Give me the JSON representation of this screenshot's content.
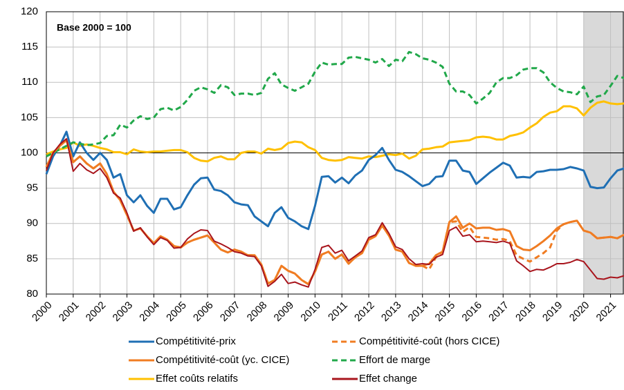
{
  "chart_data": {
    "type": "line",
    "annotation": "Base 2000 = 100",
    "x": [
      2000,
      2000.25,
      2000.5,
      2000.75,
      2001,
      2001.25,
      2001.5,
      2001.75,
      2002,
      2002.25,
      2002.5,
      2002.75,
      2003,
      2003.25,
      2003.5,
      2003.75,
      2004,
      2004.25,
      2004.5,
      2004.75,
      2005,
      2005.25,
      2005.5,
      2005.75,
      2006,
      2006.25,
      2006.5,
      2006.75,
      2007,
      2007.25,
      2007.5,
      2007.75,
      2008,
      2008.25,
      2008.5,
      2008.75,
      2009,
      2009.25,
      2009.5,
      2009.75,
      2010,
      2010.25,
      2010.5,
      2010.75,
      2011,
      2011.25,
      2011.5,
      2011.75,
      2012,
      2012.25,
      2012.5,
      2012.75,
      2013,
      2013.25,
      2013.5,
      2013.75,
      2014,
      2014.25,
      2014.5,
      2014.75,
      2015,
      2015.25,
      2015.5,
      2015.75,
      2016,
      2016.25,
      2016.5,
      2016.75,
      2017,
      2017.25,
      2017.5,
      2017.75,
      2018,
      2018.25,
      2018.5,
      2018.75,
      2019,
      2019.25,
      2019.5,
      2019.75,
      2020,
      2020.25,
      2020.5,
      2020.75,
      2021,
      2021.25,
      2021.5
    ],
    "series": [
      {
        "name": "Compétitivité-prix",
        "color": "#1f6fb4",
        "line_style": "solid",
        "values": [
          97,
          99.5,
          101,
          103,
          99.5,
          101.5,
          100,
          99,
          100,
          99,
          96.5,
          97,
          94,
          93,
          94,
          92.5,
          91.5,
          93.5,
          93.5,
          92,
          92.3,
          94,
          95.5,
          96.4,
          96.5,
          94.8,
          94.6,
          94,
          93,
          92.7,
          92.6,
          91,
          90.3,
          89.6,
          91.5,
          92.3,
          90.8,
          90.3,
          89.6,
          89.2,
          92.5,
          96.6,
          96.7,
          95.8,
          96.5,
          95.7,
          96.8,
          97.5,
          99,
          99.7,
          100.7,
          99,
          97.6,
          97.3,
          96.7,
          96,
          95.3,
          95.6,
          96.6,
          96.7,
          98.9,
          98.9,
          97.5,
          97.3,
          95.6,
          96.4,
          97.2,
          97.9,
          98.6,
          98.2,
          96.5,
          96.6,
          96.5,
          97.3,
          97.4,
          97.6,
          97.6,
          97.7,
          98,
          97.8,
          97.5,
          95.2,
          95,
          95.1,
          96.4,
          97.5,
          97.8
        ]
      },
      {
        "name": "Compétitivité-coût (hors CICE)",
        "color": "#f07c22",
        "line_style": "dashed",
        "values": [
          98,
          100,
          101,
          101.8,
          98.7,
          99.5,
          98.5,
          97.8,
          98.5,
          97,
          94.5,
          93.3,
          91.2,
          89,
          89.3,
          88.2,
          87.2,
          88.2,
          87.7,
          86.8,
          86.6,
          87.3,
          87.7,
          88,
          88.3,
          87.3,
          86.3,
          85.9,
          86.3,
          86,
          85.5,
          85.5,
          84.2,
          81.5,
          82,
          84,
          83.3,
          82.9,
          82,
          81.4,
          83.2,
          85.6,
          86,
          85,
          85.6,
          84.3,
          85.2,
          85.8,
          87.7,
          88.2,
          89.7,
          88.3,
          86.3,
          86,
          84.4,
          84,
          84,
          83.5,
          85.2,
          86,
          90.2,
          90.3,
          88.8,
          89.5,
          88.1,
          88,
          87.9,
          87.7,
          87.8,
          87.5,
          85.5,
          85,
          84.6,
          85.2,
          85.8,
          86.6,
          89,
          89.9,
          90.2,
          90.4,
          89,
          88.7,
          87.9,
          88,
          88.1,
          87.9,
          88.4
        ]
      },
      {
        "name": "Compétitivité-coût (yc. CICE)",
        "color": "#f07c22",
        "line_style": "solid",
        "values": [
          98,
          100,
          101,
          101.8,
          98.7,
          99.5,
          98.5,
          97.8,
          98.5,
          97,
          94.5,
          93.3,
          91.2,
          89,
          89.3,
          88.2,
          87.2,
          88.2,
          87.7,
          86.8,
          86.6,
          87.3,
          87.7,
          88,
          88.3,
          87.3,
          86.3,
          85.9,
          86.3,
          86,
          85.5,
          85.5,
          84.2,
          81.5,
          82,
          84,
          83.3,
          82.9,
          82,
          81.4,
          83.2,
          85.6,
          86,
          85,
          85.6,
          84.3,
          85.2,
          85.8,
          87.7,
          88.2,
          89.7,
          88.3,
          86.3,
          86,
          84.4,
          84,
          84,
          84.3,
          85.5,
          86,
          90.2,
          91,
          89.4,
          90,
          89.3,
          89.4,
          89.4,
          89.1,
          89.2,
          88.9,
          86.8,
          86.3,
          86.2,
          86.8,
          87.5,
          88.3,
          89.3,
          89.9,
          90.2,
          90.4,
          89,
          88.7,
          87.9,
          88,
          88.1,
          87.9,
          88.4
        ]
      },
      {
        "name": "Effort de marge",
        "color": "#21a84a",
        "line_style": "dashed",
        "values": [
          99.5,
          100,
          100.5,
          101,
          101.5,
          101.3,
          101.1,
          101.2,
          101.4,
          102.4,
          102.5,
          104,
          103.6,
          104.6,
          105.2,
          104.8,
          105,
          106.2,
          106.4,
          106,
          106.5,
          107.5,
          108.8,
          109.3,
          109,
          108.5,
          109.6,
          109.3,
          108.2,
          108.4,
          108.4,
          108.2,
          108.5,
          110.5,
          111.3,
          109.7,
          109.2,
          108.8,
          109.3,
          109.8,
          111.5,
          112.8,
          112.5,
          112.6,
          112.6,
          113.5,
          113.6,
          113.4,
          113.2,
          112.8,
          113.3,
          112.3,
          113.2,
          113,
          114.3,
          114,
          113.4,
          113.2,
          112.8,
          112.2,
          109.8,
          108.7,
          108.7,
          108.2,
          107,
          107.7,
          108.5,
          110,
          110.6,
          110.6,
          111,
          111.8,
          112,
          112,
          111.4,
          110,
          109.2,
          108.7,
          108.6,
          108.3,
          109.4,
          107.2,
          108,
          108.2,
          109.5,
          110.9,
          110.6
        ]
      },
      {
        "name": "Effet coûts relatifs",
        "color": "#ffc000",
        "line_style": "solid",
        "values": [
          99.8,
          100.2,
          100.5,
          100.7,
          101.5,
          101,
          101.2,
          101,
          100.7,
          100.5,
          100.1,
          100.1,
          99.8,
          100.5,
          100.2,
          100.1,
          100.2,
          100.2,
          100.3,
          100.4,
          100.4,
          100.1,
          99.3,
          98.9,
          98.8,
          99.3,
          99.5,
          99.1,
          99.1,
          100,
          100.2,
          100.2,
          99.9,
          100.6,
          100.4,
          100.6,
          101.4,
          101.6,
          101.5,
          100.8,
          100.4,
          99.3,
          99,
          98.9,
          99,
          99.4,
          99.3,
          99.2,
          99.5,
          99.4,
          99.6,
          99.8,
          99.7,
          99.9,
          99.2,
          99.6,
          100.5,
          100.6,
          100.8,
          100.9,
          101.5,
          101.6,
          101.7,
          101.8,
          102.2,
          102.3,
          102.2,
          101.9,
          101.9,
          102.4,
          102.6,
          102.9,
          103.6,
          104.2,
          105.1,
          105.7,
          105.9,
          106.6,
          106.6,
          106.3,
          105.3,
          106.4,
          107.1,
          107.3,
          107,
          106.9,
          107
        ]
      },
      {
        "name": "Effet change",
        "color": "#a8141c",
        "line_style": "solid",
        "values": [
          97.5,
          100,
          101.2,
          102,
          97.4,
          98.5,
          97.6,
          97.1,
          97.8,
          96.5,
          94.3,
          93.6,
          91.5,
          88.9,
          89.4,
          88.1,
          87,
          88,
          87.6,
          86.5,
          86.6,
          87.8,
          88.6,
          89.1,
          89,
          87.5,
          87.1,
          86.6,
          86,
          85.8,
          85.4,
          85.3,
          84,
          81.1,
          81.8,
          82.8,
          81.5,
          81.7,
          81.3,
          81,
          83.5,
          86.6,
          86.9,
          85.8,
          86.2,
          84.7,
          85.4,
          86.1,
          88,
          88.4,
          90.1,
          88.6,
          86.7,
          86.3,
          85,
          84.2,
          84.3,
          84.2,
          85.2,
          85.6,
          89,
          89.5,
          88.2,
          88.4,
          87.4,
          87.5,
          87.4,
          87.3,
          87.5,
          87.2,
          84.7,
          84,
          83.2,
          83.5,
          83.4,
          83.8,
          84.3,
          84.3,
          84.5,
          84.9,
          84.6,
          83.4,
          82.2,
          82.1,
          82.4,
          82.3,
          82.6
        ]
      }
    ],
    "xlim": [
      2000,
      2021.5
    ],
    "xticks": [
      2000,
      2001,
      2002,
      2003,
      2004,
      2005,
      2006,
      2007,
      2008,
      2009,
      2010,
      2011,
      2012,
      2013,
      2014,
      2015,
      2016,
      2017,
      2018,
      2019,
      2020,
      2021
    ],
    "ylim": [
      80,
      120
    ],
    "yticks": [
      80,
      85,
      90,
      95,
      100,
      105,
      110,
      115,
      120
    ],
    "reference_line": 100,
    "shaded_region": [
      2020,
      2021.5
    ],
    "grid": true,
    "legend": "bottom"
  }
}
